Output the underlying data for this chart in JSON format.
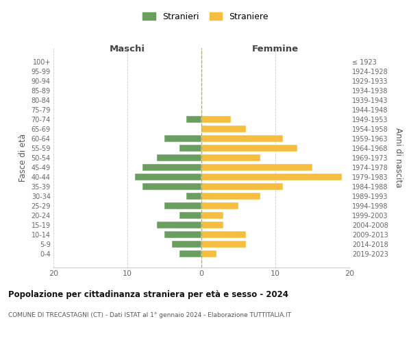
{
  "age_groups": [
    "100+",
    "95-99",
    "90-94",
    "85-89",
    "80-84",
    "75-79",
    "70-74",
    "65-69",
    "60-64",
    "55-59",
    "50-54",
    "45-49",
    "40-44",
    "35-39",
    "30-34",
    "25-29",
    "20-24",
    "15-19",
    "10-14",
    "5-9",
    "0-4"
  ],
  "birth_years": [
    "≤ 1923",
    "1924-1928",
    "1929-1933",
    "1934-1938",
    "1939-1943",
    "1944-1948",
    "1949-1953",
    "1954-1958",
    "1959-1963",
    "1964-1968",
    "1969-1973",
    "1974-1978",
    "1979-1983",
    "1984-1988",
    "1989-1993",
    "1994-1998",
    "1999-2003",
    "2004-2008",
    "2009-2013",
    "2014-2018",
    "2019-2023"
  ],
  "maschi": [
    0,
    0,
    0,
    0,
    0,
    0,
    2,
    0,
    5,
    3,
    6,
    8,
    9,
    8,
    2,
    5,
    3,
    6,
    5,
    4,
    3
  ],
  "femmine": [
    0,
    0,
    0,
    0,
    0,
    0,
    4,
    6,
    11,
    13,
    8,
    15,
    19,
    11,
    8,
    5,
    3,
    3,
    6,
    6,
    2
  ],
  "color_maschi": "#6a9e5e",
  "color_femmine": "#f5be41",
  "title": "Popolazione per cittadinanza straniera per età e sesso - 2024",
  "subtitle": "COMUNE DI TRECASTAGNI (CT) - Dati ISTAT al 1° gennaio 2024 - Elaborazione TUTTITALIA.IT",
  "xlabel_left": "Maschi",
  "xlabel_right": "Femmine",
  "ylabel_left": "Fasce di età",
  "ylabel_right": "Anni di nascita",
  "legend_maschi": "Stranieri",
  "legend_femmine": "Straniere",
  "xlim": 20,
  "background_color": "#ffffff",
  "grid_color": "#cccccc"
}
